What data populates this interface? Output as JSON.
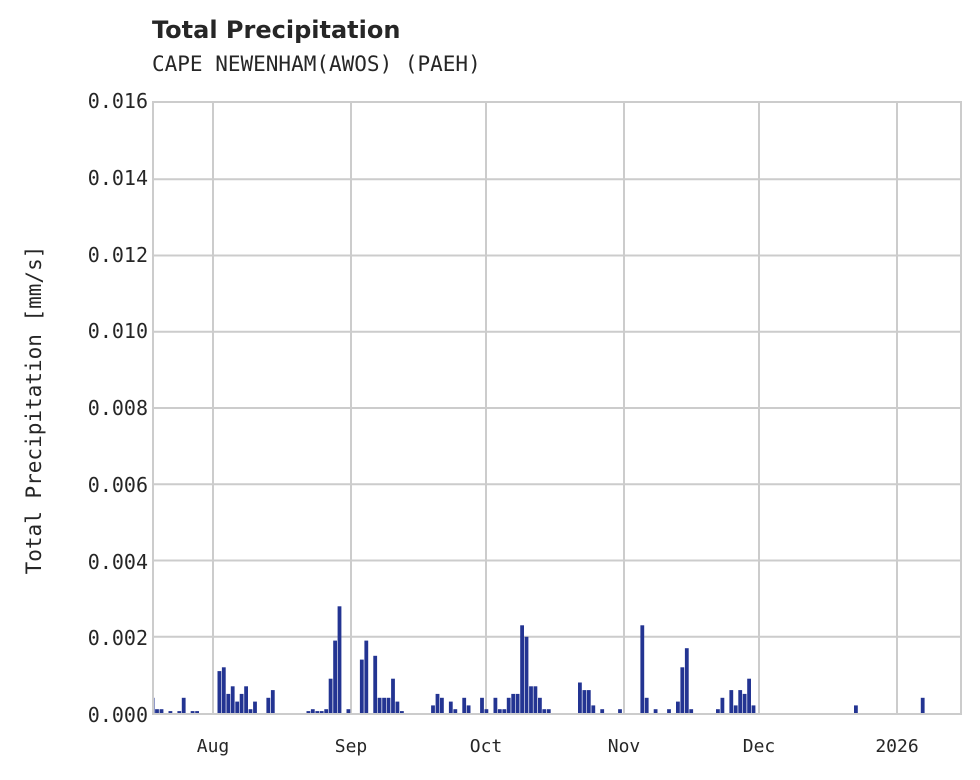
{
  "chart_data": {
    "type": "bar",
    "title": "Total Precipitation",
    "subtitle": "CAPE NEWENHAM(AWOS) (PAEH)",
    "xlabel": "",
    "ylabel": "Total Precipitation [mm/s]",
    "ylim": [
      0,
      0.016
    ],
    "yticks": [
      "0.000",
      "0.002",
      "0.004",
      "0.006",
      "0.008",
      "0.010",
      "0.012",
      "0.014",
      "0.016"
    ],
    "xticks": [
      "Aug",
      "Sep",
      "Oct",
      "Nov",
      "Dec",
      "2026"
    ],
    "grid": true,
    "legend": null,
    "color": "#233492",
    "x_start": "Jul 18",
    "x_end": "Jan 11",
    "series": [
      {
        "name": "Total Precipitation",
        "points": [
          {
            "day": 0,
            "value": 0.0004
          },
          {
            "day": 1,
            "value": 0.0001
          },
          {
            "day": 2,
            "value": 0.0001
          },
          {
            "day": 4,
            "value": 5e-05
          },
          {
            "day": 6,
            "value": 5e-05
          },
          {
            "day": 7,
            "value": 0.0004
          },
          {
            "day": 9,
            "value": 5e-05
          },
          {
            "day": 10,
            "value": 5e-05
          },
          {
            "day": 15,
            "value": 0.0011
          },
          {
            "day": 16,
            "value": 0.0012
          },
          {
            "day": 17,
            "value": 0.0005
          },
          {
            "day": 18,
            "value": 0.0007
          },
          {
            "day": 19,
            "value": 0.0003
          },
          {
            "day": 20,
            "value": 0.0005
          },
          {
            "day": 21,
            "value": 0.0007
          },
          {
            "day": 22,
            "value": 0.0001
          },
          {
            "day": 23,
            "value": 0.0003
          },
          {
            "day": 26,
            "value": 0.0004
          },
          {
            "day": 27,
            "value": 0.0006
          },
          {
            "day": 35,
            "value": 5e-05
          },
          {
            "day": 36,
            "value": 0.0001
          },
          {
            "day": 37,
            "value": 5e-05
          },
          {
            "day": 38,
            "value": 5e-05
          },
          {
            "day": 39,
            "value": 0.0001
          },
          {
            "day": 40,
            "value": 0.0009
          },
          {
            "day": 41,
            "value": 0.0019
          },
          {
            "day": 42,
            "value": 0.0028
          },
          {
            "day": 44,
            "value": 0.0001
          },
          {
            "day": 47,
            "value": 0.0014
          },
          {
            "day": 48,
            "value": 0.0019
          },
          {
            "day": 50,
            "value": 0.0015
          },
          {
            "day": 51,
            "value": 0.0004
          },
          {
            "day": 52,
            "value": 0.0004
          },
          {
            "day": 53,
            "value": 0.0004
          },
          {
            "day": 54,
            "value": 0.0009
          },
          {
            "day": 55,
            "value": 0.0003
          },
          {
            "day": 56,
            "value": 5e-05
          },
          {
            "day": 63,
            "value": 0.0002
          },
          {
            "day": 64,
            "value": 0.0005
          },
          {
            "day": 65,
            "value": 0.0004
          },
          {
            "day": 67,
            "value": 0.0003
          },
          {
            "day": 68,
            "value": 0.0001
          },
          {
            "day": 70,
            "value": 0.0004
          },
          {
            "day": 71,
            "value": 0.0002
          },
          {
            "day": 74,
            "value": 0.0004
          },
          {
            "day": 75,
            "value": 0.0001
          },
          {
            "day": 77,
            "value": 0.0004
          },
          {
            "day": 78,
            "value": 0.0001
          },
          {
            "day": 79,
            "value": 0.0001
          },
          {
            "day": 80,
            "value": 0.0004
          },
          {
            "day": 81,
            "value": 0.0005
          },
          {
            "day": 82,
            "value": 0.0005
          },
          {
            "day": 83,
            "value": 0.0023
          },
          {
            "day": 84,
            "value": 0.002
          },
          {
            "day": 85,
            "value": 0.0007
          },
          {
            "day": 86,
            "value": 0.0007
          },
          {
            "day": 87,
            "value": 0.0004
          },
          {
            "day": 88,
            "value": 0.0001
          },
          {
            "day": 89,
            "value": 0.0001
          },
          {
            "day": 96,
            "value": 0.0008
          },
          {
            "day": 97,
            "value": 0.0006
          },
          {
            "day": 98,
            "value": 0.0006
          },
          {
            "day": 99,
            "value": 0.0002
          },
          {
            "day": 101,
            "value": 0.0001
          },
          {
            "day": 105,
            "value": 0.0001
          },
          {
            "day": 110,
            "value": 0.0023
          },
          {
            "day": 111,
            "value": 0.0004
          },
          {
            "day": 113,
            "value": 0.0001
          },
          {
            "day": 116,
            "value": 0.0001
          },
          {
            "day": 118,
            "value": 0.0003
          },
          {
            "day": 119,
            "value": 0.0012
          },
          {
            "day": 120,
            "value": 0.0017
          },
          {
            "day": 121,
            "value": 0.0001
          },
          {
            "day": 127,
            "value": 0.0001
          },
          {
            "day": 128,
            "value": 0.0004
          },
          {
            "day": 130,
            "value": 0.0006
          },
          {
            "day": 131,
            "value": 0.0002
          },
          {
            "day": 132,
            "value": 0.0006
          },
          {
            "day": 133,
            "value": 0.0005
          },
          {
            "day": 134,
            "value": 0.0009
          },
          {
            "day": 135,
            "value": 0.0002
          },
          {
            "day": 158,
            "value": 0.0002
          },
          {
            "day": 173,
            "value": 0.0004
          }
        ]
      }
    ]
  }
}
